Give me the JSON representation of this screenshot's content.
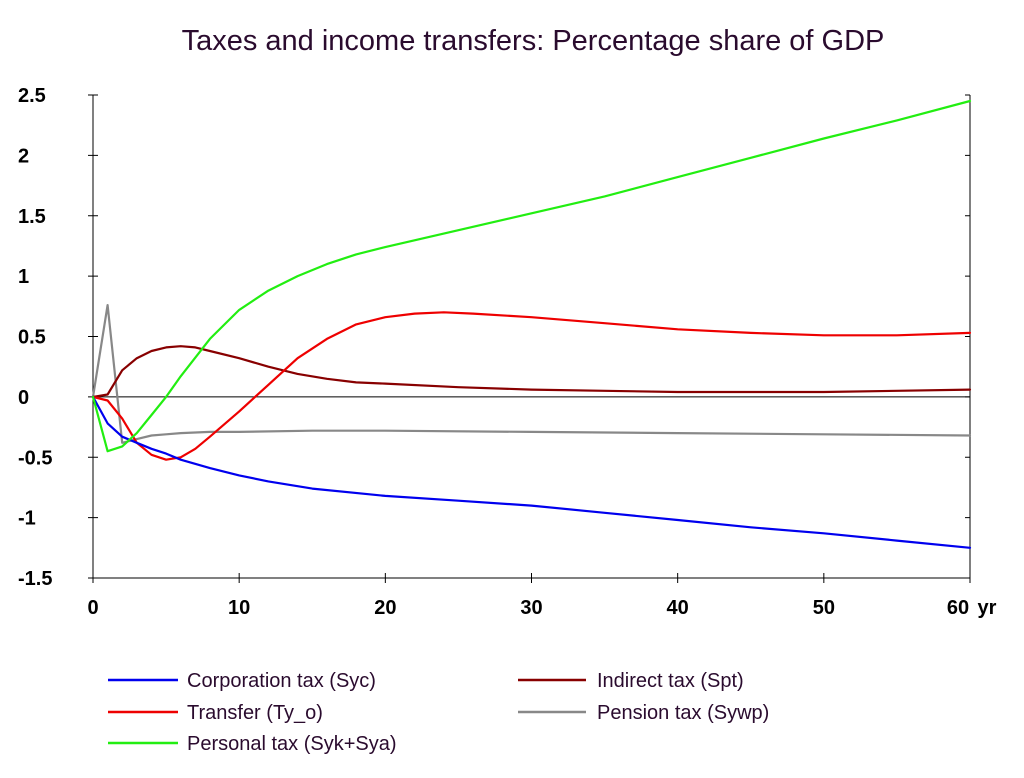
{
  "chart_data": {
    "type": "line",
    "title": "Taxes and income transfers: Percentage share of GDP",
    "xlabel": "",
    "ylabel": "",
    "x_unit_label": "yr",
    "xlim": [
      0,
      60
    ],
    "ylim": [
      -1.5,
      2.5
    ],
    "x_ticks": [
      0,
      10,
      20,
      30,
      40,
      50,
      60
    ],
    "y_ticks": [
      -1.5,
      -1,
      -0.5,
      0,
      0.5,
      1,
      1.5,
      2,
      2.5
    ],
    "y_tick_labels": [
      "-1.5",
      "-1",
      "-0.5",
      "0",
      "0.5",
      "1",
      "1.5",
      "2",
      "2.5"
    ],
    "grid": false,
    "zero_line": true,
    "legend_position": "bottom",
    "series": [
      {
        "name": "Corporation tax (Syc)",
        "color": "#0000ee",
        "x": [
          0,
          1,
          2,
          3,
          4,
          5,
          6,
          8,
          10,
          12,
          15,
          20,
          25,
          30,
          35,
          40,
          45,
          50,
          55,
          60
        ],
        "y": [
          0,
          -0.22,
          -0.33,
          -0.38,
          -0.43,
          -0.47,
          -0.52,
          -0.59,
          -0.65,
          -0.7,
          -0.76,
          -0.82,
          -0.86,
          -0.9,
          -0.96,
          -1.02,
          -1.08,
          -1.13,
          -1.19,
          -1.25
        ]
      },
      {
        "name": "Transfer (Ty_o)",
        "color": "#ee0000",
        "x": [
          0,
          1,
          2,
          3,
          4,
          5,
          6,
          7,
          8,
          10,
          12,
          14,
          16,
          18,
          20,
          22,
          24,
          26,
          30,
          35,
          40,
          45,
          50,
          55,
          60
        ],
        "y": [
          0,
          -0.03,
          -0.18,
          -0.38,
          -0.48,
          -0.52,
          -0.5,
          -0.43,
          -0.33,
          -0.12,
          0.1,
          0.32,
          0.48,
          0.6,
          0.66,
          0.69,
          0.7,
          0.69,
          0.66,
          0.61,
          0.56,
          0.53,
          0.51,
          0.51,
          0.53
        ]
      },
      {
        "name": "Personal tax (Syk+Sya)",
        "color": "#22ee11",
        "x": [
          0,
          1,
          2,
          3,
          4,
          5,
          6,
          8,
          10,
          12,
          14,
          16,
          18,
          20,
          25,
          30,
          35,
          40,
          45,
          50,
          55,
          60
        ],
        "y": [
          0,
          -0.45,
          -0.41,
          -0.3,
          -0.15,
          0.0,
          0.17,
          0.48,
          0.72,
          0.88,
          1.0,
          1.1,
          1.18,
          1.24,
          1.38,
          1.52,
          1.66,
          1.82,
          1.98,
          2.14,
          2.29,
          2.45
        ]
      },
      {
        "name": "Indirect tax (Spt)",
        "color": "#880000",
        "x": [
          0,
          1,
          2,
          3,
          4,
          5,
          6,
          7,
          8,
          10,
          12,
          14,
          16,
          18,
          20,
          25,
          30,
          35,
          40,
          45,
          50,
          55,
          60
        ],
        "y": [
          0,
          0.02,
          0.22,
          0.32,
          0.38,
          0.41,
          0.42,
          0.41,
          0.38,
          0.32,
          0.25,
          0.19,
          0.15,
          0.12,
          0.11,
          0.08,
          0.06,
          0.05,
          0.04,
          0.04,
          0.04,
          0.05,
          0.06
        ]
      },
      {
        "name": "Pension tax (Sywp)",
        "color": "#888888",
        "x": [
          0,
          1,
          2,
          3,
          4,
          5,
          6,
          8,
          10,
          15,
          20,
          30,
          40,
          50,
          60
        ],
        "y": [
          0,
          0.76,
          -0.38,
          -0.35,
          -0.32,
          -0.31,
          -0.3,
          -0.29,
          -0.29,
          -0.28,
          -0.28,
          -0.29,
          -0.3,
          -0.31,
          -0.32
        ]
      }
    ]
  },
  "legend_columns": [
    [
      "Corporation tax (Syc)",
      "Transfer (Ty_o)",
      "Personal tax (Syk+Sya)"
    ],
    [
      "Indirect tax (Spt)",
      "Pension tax (Sywp)"
    ]
  ]
}
